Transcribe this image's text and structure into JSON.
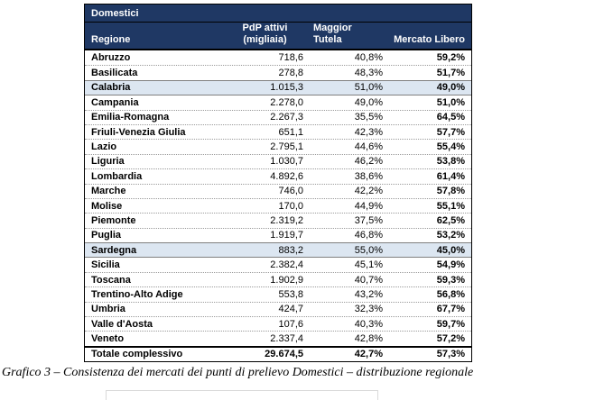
{
  "table": {
    "title": "Domestici",
    "columns": {
      "region": "Regione",
      "pdp_line1": "PdP attivi",
      "pdp_line2": "(migliaia)",
      "tutela_line1": "Maggior",
      "tutela_line2": "Tutela",
      "libero": "Mercato Libero"
    },
    "rows": [
      {
        "region": "Abruzzo",
        "pdp": "718,6",
        "tutela": "40,8%",
        "libero": "59,2%"
      },
      {
        "region": "Basilicata",
        "pdp": "278,8",
        "tutela": "48,3%",
        "libero": "51,7%"
      },
      {
        "region": "Calabria",
        "pdp": "1.015,3",
        "tutela": "51,0%",
        "libero": "49,0%",
        "_class": "highlight"
      },
      {
        "region": "Campania",
        "pdp": "2.278,0",
        "tutela": "49,0%",
        "libero": "51,0%"
      },
      {
        "region": "Emilia-Romagna",
        "pdp": "2.267,3",
        "tutela": "35,5%",
        "libero": "64,5%"
      },
      {
        "region": "Friuli-Venezia Giulia",
        "pdp": "651,1",
        "tutela": "42,3%",
        "libero": "57,7%"
      },
      {
        "region": "Lazio",
        "pdp": "2.795,1",
        "tutela": "44,6%",
        "libero": "55,4%"
      },
      {
        "region": "Liguria",
        "pdp": "1.030,7",
        "tutela": "46,2%",
        "libero": "53,8%"
      },
      {
        "region": "Lombardia",
        "pdp": "4.892,6",
        "tutela": "38,6%",
        "libero": "61,4%"
      },
      {
        "region": "Marche",
        "pdp": "746,0",
        "tutela": "42,2%",
        "libero": "57,8%"
      },
      {
        "region": "Molise",
        "pdp": "170,0",
        "tutela": "44,9%",
        "libero": "55,1%"
      },
      {
        "region": "Piemonte",
        "pdp": "2.319,2",
        "tutela": "37,5%",
        "libero": "62,5%"
      },
      {
        "region": "Puglia",
        "pdp": "1.919,7",
        "tutela": "46,8%",
        "libero": "53,2%"
      },
      {
        "region": "Sardegna",
        "pdp": "883,2",
        "tutela": "55,0%",
        "libero": "45,0%",
        "_class": "highlight"
      },
      {
        "region": "Sicilia",
        "pdp": "2.382,4",
        "tutela": "45,1%",
        "libero": "54,9%"
      },
      {
        "region": "Toscana",
        "pdp": "1.902,9",
        "tutela": "40,7%",
        "libero": "59,3%"
      },
      {
        "region": "Trentino-Alto Adige",
        "pdp": "553,8",
        "tutela": "43,2%",
        "libero": "56,8%"
      },
      {
        "region": "Umbria",
        "pdp": "424,7",
        "tutela": "32,3%",
        "libero": "67,7%"
      },
      {
        "region": "Valle d'Aosta",
        "pdp": "107,6",
        "tutela": "40,3%",
        "libero": "59,7%"
      },
      {
        "region": "Veneto",
        "pdp": "2.337,4",
        "tutela": "42,8%",
        "libero": "57,2%"
      }
    ],
    "total": {
      "region": "Totale complessivo",
      "pdp": "29.674,5",
      "tutela": "42,7%",
      "libero": "57,3%"
    }
  },
  "caption": "Grafico 3 – Consistenza dei mercati dei punti di prelievo Domestici – distribuzione regionale",
  "colors": {
    "header_bg": "#1F3864",
    "highlight_bg": "#DCE6F1",
    "header_text": "#ffffff"
  }
}
